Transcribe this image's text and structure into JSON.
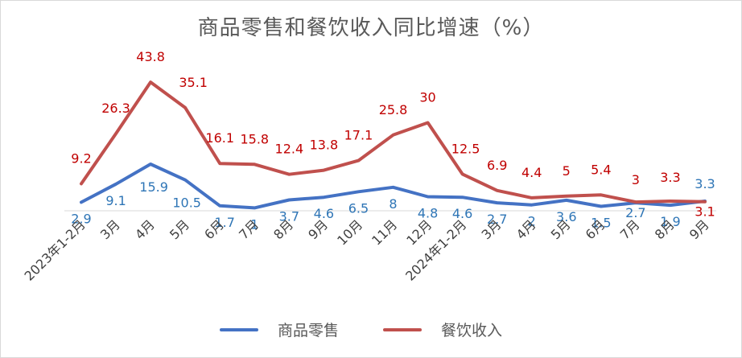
{
  "chart_data": {
    "type": "line",
    "title": "商品零售和餐饮收入同比增速（%）",
    "categories": [
      "2023年1-2月",
      "3月",
      "4月",
      "5月",
      "6月",
      "7月",
      "8月",
      "9月",
      "10月",
      "11月",
      "12月",
      "2024年1-2月",
      "3月",
      "4月",
      "5月",
      "6月",
      "7月",
      "8月",
      "9月"
    ],
    "series": [
      {
        "name": "商品零售",
        "color": "#4472C4",
        "label_color": "#2E75B6",
        "values": [
          2.9,
          9.1,
          15.9,
          10.5,
          1.7,
          1,
          3.7,
          4.6,
          6.5,
          8,
          4.8,
          4.6,
          2.7,
          2,
          3.6,
          1.5,
          2.7,
          1.9,
          3.3
        ]
      },
      {
        "name": "餐饮收入",
        "color": "#C0504D",
        "label_color": "#C00000",
        "values": [
          9.2,
          26.3,
          43.8,
          35.1,
          16.1,
          15.8,
          12.4,
          13.8,
          17.1,
          25.8,
          30,
          12.5,
          6.9,
          4.4,
          5,
          5.4,
          3,
          3.3,
          3.1
        ]
      }
    ],
    "grid": false,
    "legend": "bottom"
  }
}
